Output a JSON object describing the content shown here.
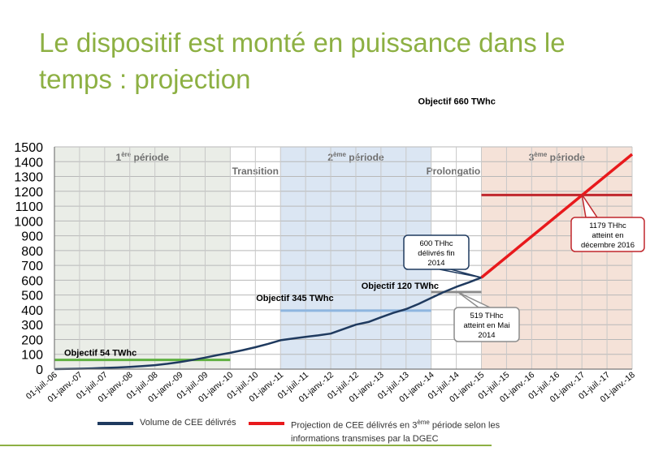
{
  "slide": {
    "title_line1": "Le dispositif est monté en puissance dans le",
    "title_line2": "temps : projection"
  },
  "colors": {
    "title": "#8db043",
    "actual_line": "#1f3a5f",
    "projection_line": "#e8191c",
    "period1_band": "#eaede7",
    "period2_band": "#dbe6f3",
    "period3_band": "#f5e2d8",
    "objective_54": "#5fb041",
    "objective_345": "#8fb6e0",
    "objective_120": "#8c8c8c",
    "objective_660": "#c0272d"
  },
  "legend": {
    "actual_label": "Volume de CEE délivrés",
    "projection_label_pre": "Projection de CEE délivrés en 3",
    "projection_label_sup": "ème",
    "projection_label_post": " période selon les",
    "projection_label_line2": "informations transmises par la DGEC"
  },
  "chart_data": {
    "type": "line",
    "title": "",
    "xlabel": "",
    "ylabel": "",
    "ylim": [
      0,
      1500
    ],
    "yticks": [
      0,
      100,
      200,
      300,
      400,
      500,
      600,
      700,
      800,
      900,
      1000,
      1100,
      1200,
      1300,
      1400,
      1500
    ],
    "grid": true,
    "legend_position": "bottom",
    "x_tick_labels": [
      "01-juil.-06",
      "01-janv.-07",
      "01-juil.-07",
      "01-janv.-08",
      "01-juil.-08",
      "01-janv.-09",
      "01-juil.-09",
      "01-janv.-10",
      "01-juil.-10",
      "01-janv.-11",
      "01-juil.-11",
      "01-janv.-12",
      "01-juil.-12",
      "01-janv.-13",
      "01-juil.-13",
      "01-janv.-14",
      "01-juil.-14",
      "01-janv.-15",
      "01-juil.-15",
      "01-janv.-16",
      "01-juil.-16",
      "01-janv.-17",
      "01-juil.-17",
      "01-janv.-18"
    ],
    "periods": [
      {
        "label_pre": "1",
        "label_sup": "ère",
        "label_post": " période",
        "start_idx": 0,
        "end_idx": 7,
        "fill_key": "period1_band"
      },
      {
        "label_pre": "Transition",
        "label_sup": "",
        "label_post": "",
        "start_idx": 7,
        "end_idx": 9,
        "fill_key": ""
      },
      {
        "label_pre": "2",
        "label_sup": "ème",
        "label_post": " période",
        "start_idx": 9,
        "end_idx": 15,
        "fill_key": "period2_band"
      },
      {
        "label_pre": "Prolongation",
        "label_sup": "",
        "label_post": "",
        "start_idx": 15,
        "end_idx": 17,
        "fill_key": ""
      },
      {
        "label_pre": "3",
        "label_sup": "ème",
        "label_post": " période",
        "start_idx": 17,
        "end_idx": 23,
        "fill_key": "period3_band"
      }
    ],
    "series": [
      {
        "name": "Volume de CEE délivrés",
        "color_key": "actual_line",
        "x_idx": [
          0,
          0.5,
          1,
          1.5,
          2,
          2.5,
          3,
          3.5,
          4,
          4.5,
          5,
          5.5,
          6,
          6.5,
          7,
          7.5,
          8,
          8.5,
          9,
          9.5,
          10,
          10.5,
          11,
          11.5,
          12,
          12.5,
          13,
          13.5,
          14,
          14.5,
          15,
          15.5,
          16,
          16.5,
          17
        ],
        "values": [
          0,
          1,
          3,
          5,
          8,
          11,
          15,
          20,
          27,
          36,
          48,
          62,
          78,
          95,
          110,
          128,
          148,
          170,
          195,
          207,
          218,
          228,
          240,
          270,
          300,
          318,
          350,
          380,
          405,
          440,
          480,
          520,
          555,
          585,
          618
        ]
      },
      {
        "name": "Projection de CEE délivrés en 3ème période selon les informations transmises par la DGEC",
        "color_key": "projection_line",
        "x_idx": [
          17,
          23
        ],
        "values": [
          618,
          1450
        ]
      }
    ],
    "objectives": [
      {
        "label": "Objectif 54 TWhc",
        "value": 62,
        "start_idx": 0,
        "end_idx": 7,
        "color_key": "objective_54"
      },
      {
        "label": "Objectif 345 TWhc",
        "value": 395,
        "start_idx": 9,
        "end_idx": 15,
        "color_key": "objective_345"
      },
      {
        "label": "Objectif 120 TWhc",
        "value": 520,
        "start_idx": 15,
        "end_idx": 17,
        "color_key": "objective_120"
      },
      {
        "label": "Objectif 660 TWhc",
        "value": 1175,
        "start_idx": 17,
        "end_idx": 23,
        "color_key": "objective_660"
      }
    ],
    "callouts": [
      {
        "lines": [
          "600 THhc",
          "délivrés fin",
          "2014"
        ],
        "value": 600,
        "x_idx": 17,
        "border": "#1f3a5f"
      },
      {
        "lines": [
          "519 THhc",
          "atteint en Mai",
          "2014"
        ],
        "value": 519,
        "x_idx": 16,
        "border": "#8c8c8c"
      },
      {
        "lines": [
          "1179 THhc",
          "atteint en",
          "décembre 2016"
        ],
        "value": 1179,
        "x_idx": 21,
        "border": "#c0272d"
      }
    ]
  }
}
